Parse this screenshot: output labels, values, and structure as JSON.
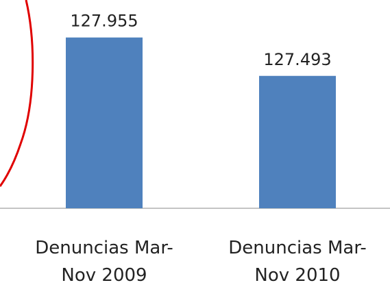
{
  "chart_data": {
    "type": "bar",
    "categories": [
      "Denuncias Mar-Nov 2009",
      "Denuncias Mar-Nov 2010"
    ],
    "values": [
      127955,
      127493
    ],
    "value_labels": [
      "127.955",
      "127.493"
    ],
    "color": "#4f81bd",
    "ylim": [
      125900,
      128200
    ]
  }
}
